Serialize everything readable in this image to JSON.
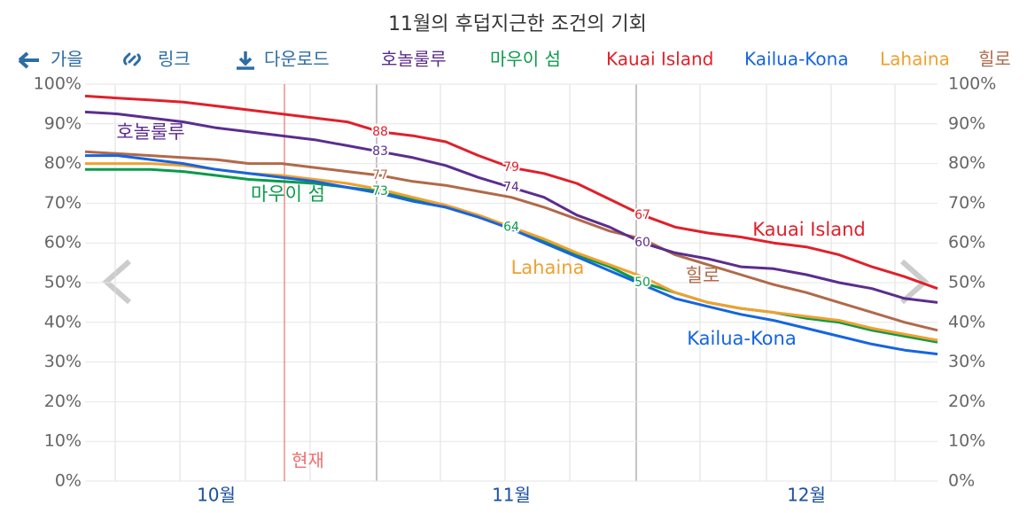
{
  "nav": [
    "가을",
    "링크",
    "다운로드"
  ],
  "chart_data": {
    "type": "line",
    "title": "11월의 후덥지근한 조건의 기회",
    "categories": [
      null,
      null,
      null,
      null,
      "10월",
      null,
      null,
      null,
      null,
      null,
      null,
      null,
      null,
      "11월",
      null,
      null,
      null,
      null,
      null,
      null,
      null,
      null,
      "12월",
      null,
      null,
      null,
      null
    ],
    "ylim": [
      0,
      100
    ],
    "yticks": [
      {
        "value": 0,
        "label": "0%"
      },
      {
        "value": 10,
        "label": "10%"
      },
      {
        "value": 20,
        "label": "20%"
      },
      {
        "value": 30,
        "label": "30%"
      },
      {
        "value": 40,
        "label": "40%"
      },
      {
        "value": 50,
        "label": "50%"
      },
      {
        "value": 60,
        "label": "60%"
      },
      {
        "value": 70,
        "label": "70%"
      },
      {
        "value": 80,
        "label": "80%"
      },
      {
        "value": 90,
        "label": "90%"
      },
      {
        "value": 100,
        "label": "100%"
      }
    ],
    "grid": true,
    "annotations": [
      {
        "text": "현재"
      }
    ],
    "series": [
      {
        "name": "호놀룰루",
        "color": "#5b2d8e",
        "value_label_indices": [
          9,
          13,
          17
        ],
        "values": [
          93,
          92.5,
          91.5,
          90.5,
          89,
          88,
          87,
          86,
          84.5,
          83,
          81.5,
          79.5,
          76.5,
          74,
          71.5,
          67,
          64,
          60,
          57.5,
          56,
          54,
          53.5,
          52,
          50,
          48.5,
          46,
          45
        ]
      },
      {
        "name": "마우이 섬",
        "color": "#0a9a4a",
        "value_label_indices": [
          9,
          13,
          17
        ],
        "values": [
          78.5,
          78.5,
          78.5,
          78,
          77,
          76,
          75.5,
          75,
          74,
          73,
          71,
          69,
          66.5,
          64,
          60.5,
          57,
          54,
          50,
          47.5,
          45,
          43.5,
          42.5,
          41,
          40,
          38,
          36.5,
          35
        ]
      },
      {
        "name": "Kauai Island",
        "color": "#e0202a",
        "value_label_indices": [
          9,
          13,
          17
        ],
        "values": [
          97,
          96.5,
          96,
          95.5,
          94.5,
          93.5,
          92.5,
          91.5,
          90.5,
          88,
          87,
          85.5,
          82,
          79,
          77.5,
          75,
          71,
          67,
          64,
          62.5,
          61.5,
          60,
          59,
          57,
          54,
          51.5,
          48.5
        ]
      },
      {
        "name": "Kailua-Kona",
        "color": "#1565e0",
        "value_label_indices": [],
        "values": [
          82,
          82,
          81,
          80,
          78.5,
          77.5,
          76.5,
          75.5,
          74,
          72.5,
          70.5,
          69,
          66.5,
          63.5,
          60,
          56.5,
          53,
          49.5,
          46,
          44,
          42,
          40.5,
          38.5,
          36.5,
          34.5,
          33,
          32
        ]
      },
      {
        "name": "Lahaina",
        "color": "#f0a030",
        "value_label_indices": [],
        "values": [
          80,
          80,
          80,
          79.5,
          78.5,
          77.5,
          77,
          76,
          75,
          73.5,
          71.5,
          69.5,
          67,
          64,
          61,
          57.5,
          54.5,
          51.5,
          47.5,
          45,
          43.5,
          42.5,
          41.5,
          40.5,
          38.5,
          37,
          35.5
        ]
      },
      {
        "name": "힐로",
        "color": "#b06a4a",
        "value_label_indices": [
          9
        ],
        "values": [
          83,
          82.5,
          82,
          81.5,
          81,
          80,
          80,
          79,
          78,
          77,
          75.5,
          74.5,
          73,
          71.5,
          69,
          66,
          63,
          61,
          57,
          54.5,
          52,
          49.5,
          47.5,
          45,
          42.5,
          40,
          38
        ]
      }
    ]
  }
}
